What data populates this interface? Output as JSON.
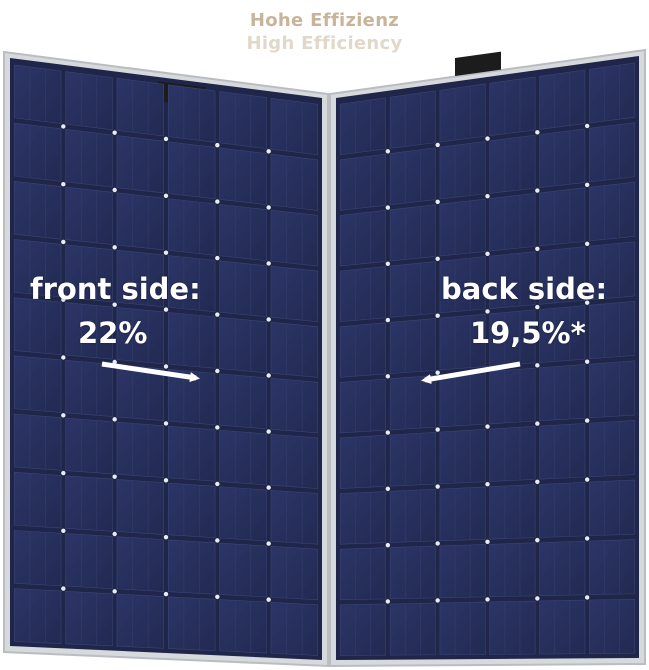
{
  "heading": {
    "german": "Hohe Effizienz",
    "english": "High Efficiency"
  },
  "front": {
    "label": "front side:",
    "value": "22%"
  },
  "back": {
    "label": "back side:",
    "value": "19,5%*"
  },
  "colors": {
    "cell": "#27305a",
    "cell_dark": "#1d2447",
    "frame": "#cfd2d6",
    "junction_box": "#1c1c1c",
    "heading_de": "#c8b49a",
    "heading_en": "#e2d8c9",
    "label_text": "#ffffff"
  }
}
